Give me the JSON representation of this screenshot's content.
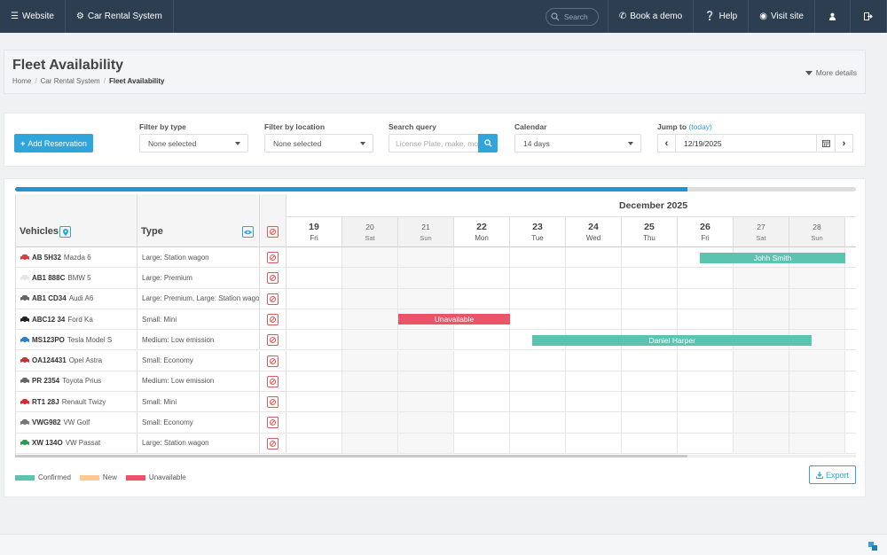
{
  "topbar": {
    "website": "Website",
    "app_name": "Car Rental System",
    "search_placeholder": "Search",
    "book_demo": "Book a demo",
    "help": "Help",
    "visit_site": "Visit site"
  },
  "header": {
    "title": "Fleet Availability",
    "breadcrumb": [
      "Home",
      "Car Rental System",
      "Fleet Availability"
    ],
    "more_details": "More details"
  },
  "filters": {
    "add_reservation": "Add Reservation",
    "type_label": "Filter by type",
    "type_value": "None selected",
    "location_label": "Filter by location",
    "location_value": "None selected",
    "search_label": "Search query",
    "search_placeholder": "License Plate, make, model",
    "calendar_label": "Calendar",
    "calendar_value": "14 days",
    "jump_label": "Jump to",
    "jump_today": "(today)",
    "jump_date": "12/19/2025"
  },
  "progress": 0.8,
  "hscroll_fraction": 0.8,
  "grid": {
    "vehicles_header": "Vehicles",
    "type_header": "Type",
    "month": "December 2025",
    "days": [
      {
        "num": "19",
        "name": "Fri",
        "weekend": false
      },
      {
        "num": "20",
        "name": "Sat",
        "weekend": true
      },
      {
        "num": "21",
        "name": "Sun",
        "weekend": true
      },
      {
        "num": "22",
        "name": "Mon",
        "weekend": false
      },
      {
        "num": "23",
        "name": "Tue",
        "weekend": false
      },
      {
        "num": "24",
        "name": "Wed",
        "weekend": false
      },
      {
        "num": "25",
        "name": "Thu",
        "weekend": false
      },
      {
        "num": "26",
        "name": "Fri",
        "weekend": false
      },
      {
        "num": "27",
        "name": "Sat",
        "weekend": true
      },
      {
        "num": "28",
        "name": "Sun",
        "weekend": true
      }
    ],
    "vehicles": [
      {
        "plate": "AB 5H32",
        "model": "Mazda 6",
        "type": "Large: Station wagon",
        "color": "#e03c3c"
      },
      {
        "plate": "AB1 888C",
        "model": "BMW 5",
        "type": "Large: Premium",
        "color": "#e6e6e6"
      },
      {
        "plate": "AB1 CD34",
        "model": "Audi A6",
        "type": "Large: Premium, Large: Station wagon",
        "color": "#666666"
      },
      {
        "plate": "ABC12 34",
        "model": "Ford Ka",
        "type": "Small: Mini",
        "color": "#222222"
      },
      {
        "plate": "MS123PO",
        "model": "Tesla Model S",
        "type": "Medium: Low emission",
        "color": "#2f7fd1"
      },
      {
        "plate": "OA124431",
        "model": "Opel Astra",
        "type": "Small: Economy",
        "color": "#d03030"
      },
      {
        "plate": "PR 2354",
        "model": "Toyota Prius",
        "type": "Medium: Low emission",
        "color": "#666666"
      },
      {
        "plate": "RT1 28J",
        "model": "Renault Twizy",
        "type": "Small: Mini",
        "color": "#d03030"
      },
      {
        "plate": "VWG982",
        "model": "VW Golf",
        "type": "Small: Economy",
        "color": "#777777"
      },
      {
        "plate": "XW 134O",
        "model": "VW Passat",
        "type": "Large: Station wagon",
        "color": "#2e9a4e"
      }
    ],
    "bookings": [
      {
        "row": 0,
        "start_day": 7.4,
        "end_day": 10,
        "label": "Johh Smith",
        "status": "confirmed"
      },
      {
        "row": 3,
        "start_day": 2,
        "end_day": 4,
        "label": "Unavailable",
        "status": "unavailable"
      },
      {
        "row": 4,
        "start_day": 4.4,
        "end_day": 9.4,
        "label": "Daniel Harper",
        "status": "confirmed"
      }
    ]
  },
  "legend": [
    {
      "label": "Confirmed",
      "color": "#5bc4b1"
    },
    {
      "label": "New",
      "color": "#fcc98f"
    },
    {
      "label": "Unavailable",
      "color": "#eb5468"
    }
  ],
  "status_colors": {
    "confirmed": "#5bc4b1",
    "new": "#fcc98f",
    "unavailable": "#eb5468"
  },
  "export": "Export"
}
